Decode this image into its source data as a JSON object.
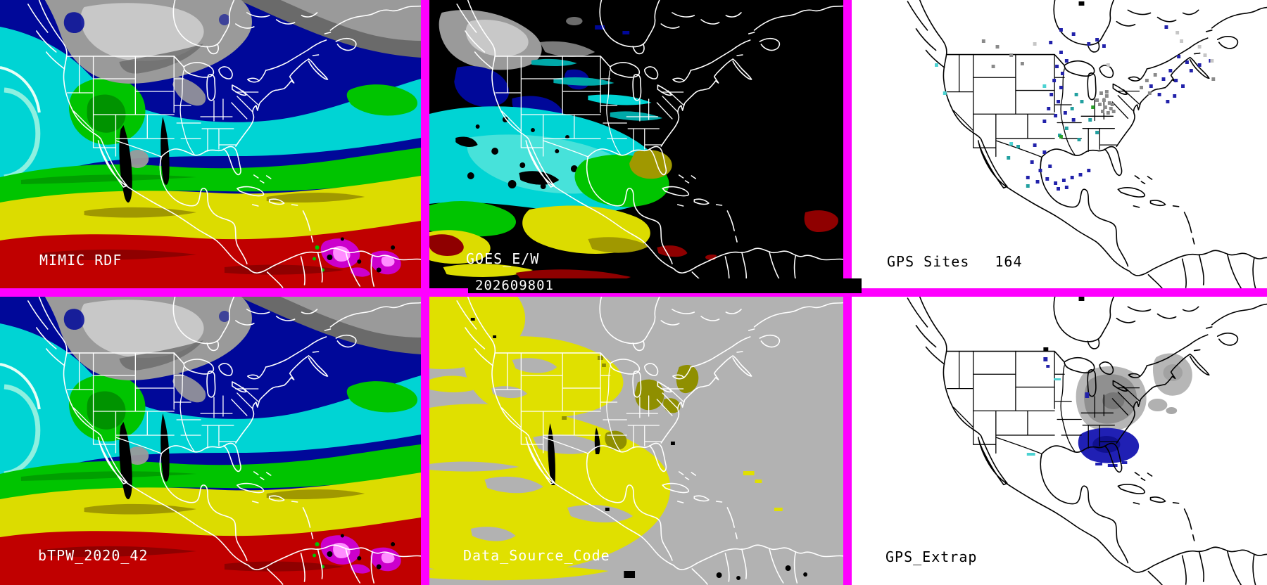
{
  "colors": {
    "border": "#ff00ff",
    "black": "#000000",
    "white": "#ffffff",
    "navy": "#000899",
    "cyan": "#00d4d4",
    "paleCyan": "#8ef0e0",
    "green": "#00c400",
    "darkGreen": "#007a00",
    "yellow": "#dcdc00",
    "olive": "#a09800",
    "red": "#c00000",
    "darkRed": "#8f0000",
    "magentaTPW": "#cc00cc",
    "pink": "#ff8cff",
    "cloudGray": "#9a9a9a",
    "cloudLight": "#c8c8c8",
    "cloudDark": "#6a6a6a",
    "teal": "#00a8a8",
    "panelGray": "#b2b2b2",
    "maskYellow": "#e0e000",
    "maskOlive": "#8f8f00",
    "extrapGray": "#909090",
    "extrapGrayLight": "#b6b6b6",
    "extrapGrayDark": "#767676",
    "extrapBlue": "#2020b4",
    "extrapBlueDark": "#101090"
  },
  "dot_colors": {
    "n": "#2222aa",
    "t": "#22a0a0",
    "g": "#8a8a8a",
    "l": "#c6c6c6",
    "c": "#4cd2d2",
    "gr": "#2aa02a"
  },
  "panels": {
    "mimic": {
      "label": "MIMIC RDF"
    },
    "goes": {
      "label": "GOES_E/W",
      "timestamp": "202609801"
    },
    "gps_sites": {
      "label": "GPS Sites",
      "count": "164",
      "dots": [
        [
          300,
          40,
          "n"
        ],
        [
          318,
          46,
          "n"
        ],
        [
          285,
          58,
          "n"
        ],
        [
          340,
          60,
          "n"
        ],
        [
          352,
          54,
          "n"
        ],
        [
          362,
          63,
          "n"
        ],
        [
          262,
          60,
          "l"
        ],
        [
          368,
          90,
          "l"
        ],
        [
          452,
          36,
          "n"
        ],
        [
          468,
          44,
          "l"
        ],
        [
          188,
          56,
          "g"
        ],
        [
          208,
          64,
          "g"
        ],
        [
          228,
          76,
          "g"
        ],
        [
          244,
          88,
          "g"
        ],
        [
          202,
          92,
          "g"
        ],
        [
          520,
          110,
          "g"
        ],
        [
          120,
          90,
          "c"
        ],
        [
          132,
          130,
          "c"
        ],
        [
          276,
          120,
          "c"
        ],
        [
          300,
          72,
          "n"
        ],
        [
          308,
          84,
          "n"
        ],
        [
          294,
          92,
          "n"
        ],
        [
          302,
          102,
          "n"
        ],
        [
          290,
          112,
          "n"
        ],
        [
          300,
          122,
          "n"
        ],
        [
          286,
          132,
          "n"
        ],
        [
          296,
          142,
          "n"
        ],
        [
          282,
          152,
          "n"
        ],
        [
          292,
          162,
          "n"
        ],
        [
          306,
          158,
          "n"
        ],
        [
          276,
          170,
          "n"
        ],
        [
          318,
          168,
          "n"
        ],
        [
          322,
          132,
          "t"
        ],
        [
          330,
          142,
          "t"
        ],
        [
          316,
          152,
          "t"
        ],
        [
          342,
          168,
          "t"
        ],
        [
          308,
          180,
          "t"
        ],
        [
          352,
          186,
          "t"
        ],
        [
          326,
          196,
          "t"
        ],
        [
          298,
          190,
          "t"
        ],
        [
          358,
          130,
          "g"
        ],
        [
          366,
          134,
          "g"
        ],
        [
          362,
          140,
          "g"
        ],
        [
          370,
          144,
          "g"
        ],
        [
          356,
          146,
          "g"
        ],
        [
          364,
          150,
          "g"
        ],
        [
          372,
          152,
          "g"
        ],
        [
          360,
          156,
          "g"
        ],
        [
          368,
          158,
          "g"
        ],
        [
          374,
          146,
          "g"
        ],
        [
          352,
          140,
          "g"
        ],
        [
          376,
          156,
          "g"
        ],
        [
          366,
          128,
          "g"
        ],
        [
          424,
          112,
          "g"
        ],
        [
          436,
          104,
          "g"
        ],
        [
          416,
          122,
          "g"
        ],
        [
          428,
          130,
          "g"
        ],
        [
          470,
          78,
          "n"
        ],
        [
          482,
          86,
          "n"
        ],
        [
          458,
          98,
          "n"
        ],
        [
          448,
          110,
          "n"
        ],
        [
          466,
          112,
          "n"
        ],
        [
          476,
          120,
          "n"
        ],
        [
          488,
          98,
          "n"
        ],
        [
          500,
          90,
          "n"
        ],
        [
          516,
          84,
          "n"
        ],
        [
          430,
          120,
          "n"
        ],
        [
          442,
          132,
          "n"
        ],
        [
          454,
          142,
          "n"
        ],
        [
          464,
          134,
          "n"
        ],
        [
          508,
          76,
          "l"
        ],
        [
          518,
          84,
          "l"
        ],
        [
          500,
          64,
          "l"
        ],
        [
          474,
          56,
          "l"
        ],
        [
          262,
          204,
          "n"
        ],
        [
          276,
          214,
          "n"
        ],
        [
          258,
          228,
          "n"
        ],
        [
          270,
          240,
          "n"
        ],
        [
          284,
          234,
          "n"
        ],
        [
          252,
          250,
          "n"
        ],
        [
          266,
          256,
          "n"
        ],
        [
          280,
          252,
          "n"
        ],
        [
          292,
          258,
          "n"
        ],
        [
          304,
          254,
          "n"
        ],
        [
          316,
          250,
          "n"
        ],
        [
          328,
          246,
          "n"
        ],
        [
          340,
          240,
          "n"
        ],
        [
          296,
          266,
          "n"
        ],
        [
          308,
          264,
          "n"
        ],
        [
          238,
          206,
          "t"
        ],
        [
          252,
          262,
          "t"
        ],
        [
          224,
          222,
          "t"
        ],
        [
          228,
          202,
          "c"
        ],
        [
          300,
          192,
          "gr"
        ],
        [
          346,
          150,
          "gr"
        ]
      ]
    },
    "btpw": {
      "label": "bTPW_2020_42"
    },
    "data_source": {
      "label": "Data_Source_Code"
    },
    "gps_extrap": {
      "label": "GPS_Extrap"
    }
  }
}
